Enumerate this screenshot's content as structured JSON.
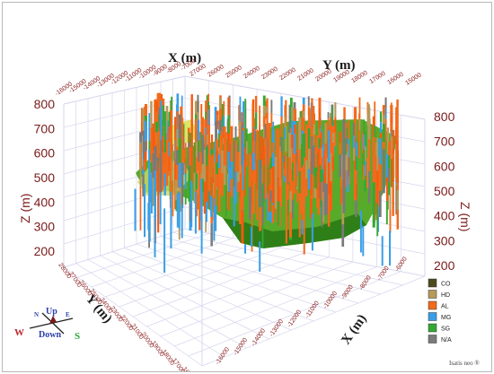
{
  "axes": {
    "x_title_top": "X (m)",
    "y_title_top": "Y (m)",
    "z_title_left": "Z (m)",
    "z_title_right": "Z (m)",
    "y_title_front": "Y (m)",
    "x_title_front": "X (m)",
    "x_ticks_top": [
      "-16000",
      "-15000",
      "-14000",
      "-13000",
      "-12000",
      "-11000",
      "-10000",
      "-9000",
      "-8000",
      "-7000"
    ],
    "y_ticks_top": [
      "27000",
      "26000",
      "25000",
      "24000",
      "23000",
      "22000",
      "21000",
      "20000",
      "19000",
      "18000",
      "17000",
      "16000",
      "15000"
    ],
    "z_ticks_left": [
      "800",
      "700",
      "600",
      "500",
      "400",
      "300",
      "200"
    ],
    "z_ticks_right": [
      "800",
      "700",
      "600",
      "500",
      "400",
      "300",
      "200"
    ],
    "y_ticks_front": [
      "28000",
      "27000",
      "26000",
      "25000",
      "24000",
      "23000",
      "22000",
      "21000",
      "20000",
      "19000",
      "18000",
      "17000",
      "16000"
    ],
    "x_ticks_front": [
      "-16000",
      "-15000",
      "-14000",
      "-13000",
      "-12000",
      "-11000",
      "-10000",
      "-9000",
      "-8000",
      "-7000",
      "-6000"
    ]
  },
  "legend": [
    {
      "label": "CO",
      "color": "#4d4a1e"
    },
    {
      "label": "HD",
      "color": "#b59a5a"
    },
    {
      "label": "AL",
      "color": "#f26a1b"
    },
    {
      "label": "MG",
      "color": "#3a9ee6"
    },
    {
      "label": "SG",
      "color": "#35a833"
    },
    {
      "label": "N/A",
      "color": "#7a7a7a"
    }
  ],
  "compass": {
    "up": "Up",
    "down": "Down",
    "west": "W",
    "east": "E",
    "north": "N",
    "south": "S"
  },
  "watermark": "Isatis neo ®"
}
